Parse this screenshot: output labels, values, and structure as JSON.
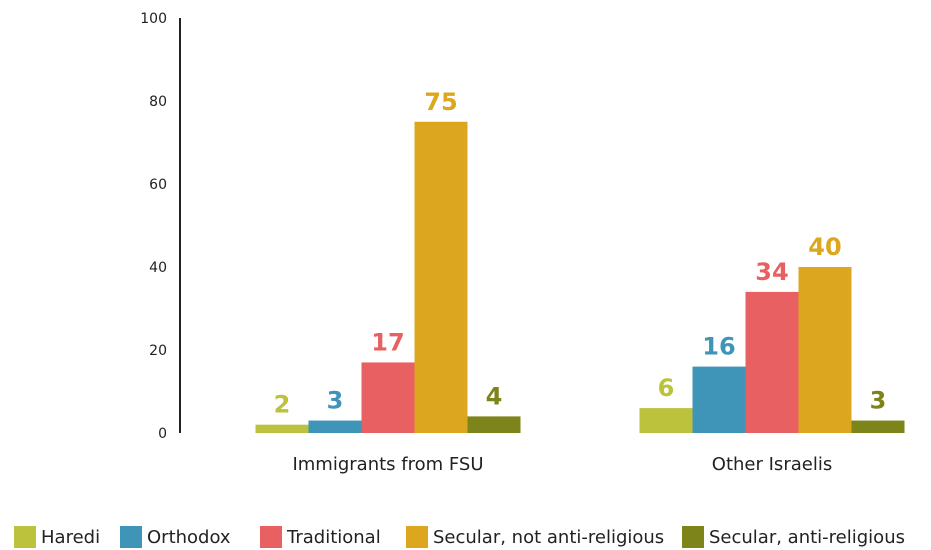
{
  "chart_data": {
    "type": "bar",
    "title": "",
    "xlabel": "",
    "ylabel": "",
    "ylim": [
      0,
      100
    ],
    "yticks": [
      0,
      20,
      40,
      60,
      80,
      100
    ],
    "grid": false,
    "legend_position": "bottom",
    "categories": [
      "Immigrants from FSU",
      "Other Israelis"
    ],
    "series": [
      {
        "name": "Haredi",
        "color": "#bcc23c",
        "values": [
          2,
          6
        ]
      },
      {
        "name": "Orthodox",
        "color": "#3f95b8",
        "values": [
          3,
          16
        ]
      },
      {
        "name": "Traditional",
        "color": "#e86061",
        "values": [
          17,
          34
        ]
      },
      {
        "name": "Secular, not anti-religious",
        "color": "#dca71e",
        "values": [
          75,
          40
        ]
      },
      {
        "name": "Secular, anti-religious",
        "color": "#7d851a",
        "values": [
          4,
          3
        ]
      }
    ]
  }
}
